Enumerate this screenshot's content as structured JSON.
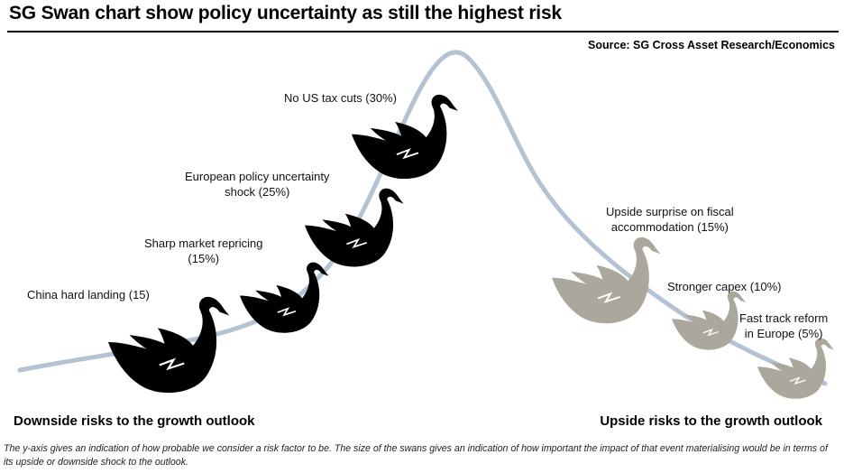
{
  "title": "SG Swan chart show policy uncertainty as still the highest risk",
  "source": "Source: SG Cross Asset Research/Economics",
  "axis": {
    "left": "Downside risks to the growth outlook",
    "right": "Upside risks to the growth outlook"
  },
  "footnote": "The y-axis gives an indication of how probable we consider a risk factor to be. The size of the swans gives an indication of how important the impact of that event materialising would be in terms of its upside or downside shock to the outlook.",
  "colors": {
    "curve": "#b3c3d3",
    "downside_swan": "#000000",
    "upside_swan": "#aba79c"
  },
  "risks": [
    {
      "id": "china",
      "label_1": "China hard landing (15)",
      "label_2": "",
      "side": "downside"
    },
    {
      "id": "repricing",
      "label_1": "Sharp market repricing",
      "label_2": "(15%)",
      "side": "downside"
    },
    {
      "id": "europe-policy",
      "label_1": "European policy uncertainty",
      "label_2": "shock (25%)",
      "side": "downside"
    },
    {
      "id": "us-tax",
      "label_1": "No US tax cuts (30%)",
      "label_2": "",
      "side": "downside"
    },
    {
      "id": "fiscal",
      "label_1": "Upside surprise on fiscal",
      "label_2": "accommodation (15%)",
      "side": "upside"
    },
    {
      "id": "capex",
      "label_1": "Stronger capex (10%)",
      "label_2": "",
      "side": "upside"
    },
    {
      "id": "reform",
      "label_1": "Fast track reform",
      "label_2": "in Europe (5%)",
      "side": "upside"
    }
  ]
}
